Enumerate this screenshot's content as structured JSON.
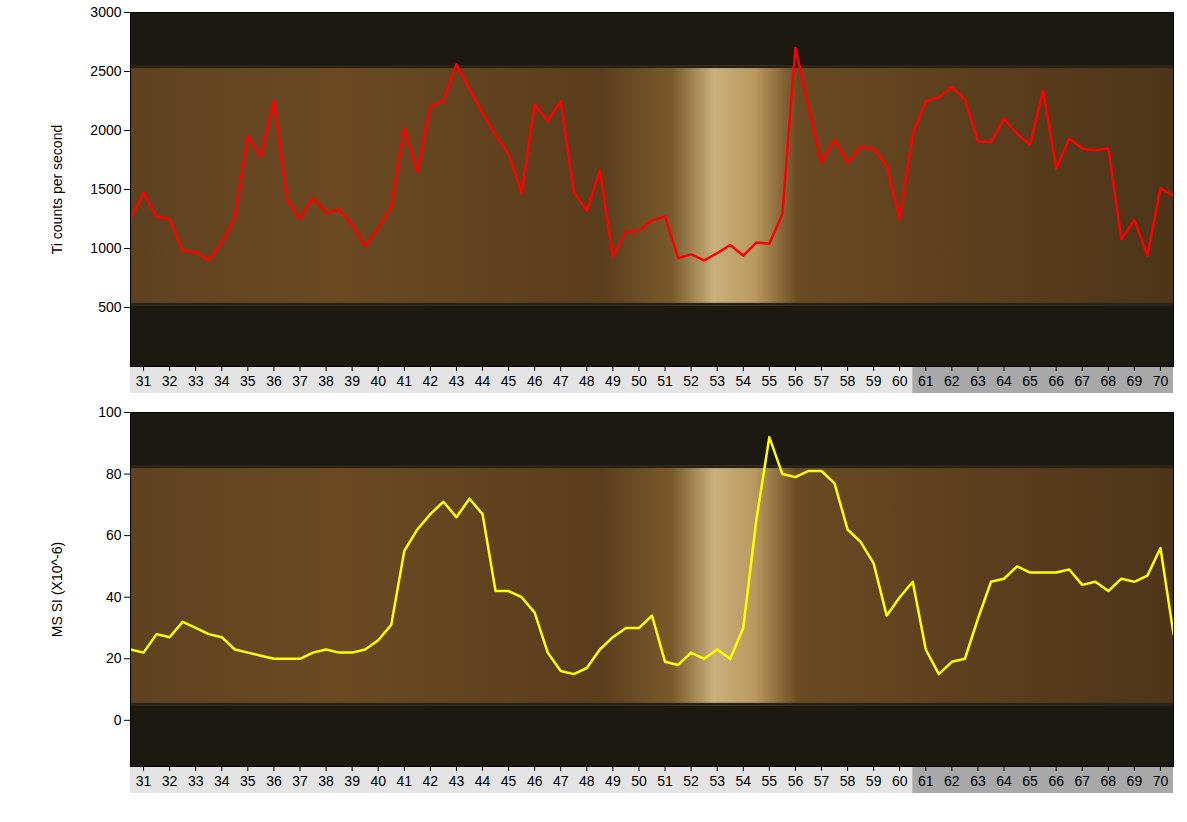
{
  "chart_data": [
    {
      "type": "line",
      "y_label": "Ti counts per second",
      "color": "#ff0000",
      "x": [
        30.5,
        31,
        31.5,
        32,
        32.5,
        33,
        33.5,
        34,
        34.5,
        35,
        35.5,
        36,
        36.5,
        37,
        37.5,
        38,
        38.5,
        39,
        39.5,
        40,
        40.5,
        41,
        41.5,
        42,
        42.5,
        43,
        43.5,
        44,
        44.5,
        45,
        45.5,
        46,
        46.5,
        47,
        47.5,
        48,
        48.5,
        49,
        49.5,
        50,
        50.5,
        51,
        51.5,
        52,
        52.5,
        53,
        53.5,
        54,
        54.5,
        55,
        55.5,
        56,
        56.5,
        57,
        57.5,
        58,
        58.5,
        59,
        59.5,
        60,
        60.5,
        61,
        61.5,
        62,
        62.5,
        63,
        63.5,
        64,
        64.5,
        65,
        65.5,
        66,
        66.5,
        67,
        67.5,
        68,
        68.5,
        69,
        69.5,
        70,
        70.5
      ],
      "values": [
        1250,
        1470,
        1270,
        1250,
        980,
        970,
        900,
        1050,
        1260,
        1950,
        1780,
        2250,
        1420,
        1250,
        1430,
        1300,
        1330,
        1200,
        1020,
        1170,
        1350,
        2020,
        1650,
        2200,
        2250,
        2560,
        2350,
        2150,
        1960,
        1800,
        1470,
        2220,
        2080,
        2250,
        1480,
        1320,
        1660,
        930,
        1140,
        1150,
        1240,
        1270,
        920,
        950,
        900,
        960,
        1030,
        940,
        1050,
        1040,
        1290,
        2700,
        2200,
        1730,
        1920,
        1730,
        1860,
        1850,
        1700,
        1250,
        1970,
        2250,
        2280,
        2370,
        2260,
        1910,
        1900,
        2100,
        1970,
        1880,
        2340,
        1680,
        1930,
        1850,
        1830,
        1850,
        1080,
        1240,
        940,
        1510,
        1450
      ],
      "xlim": [
        30.5,
        70.5
      ],
      "xticks": [
        31,
        32,
        33,
        34,
        35,
        36,
        37,
        38,
        39,
        40,
        41,
        42,
        43,
        44,
        45,
        46,
        47,
        48,
        49,
        50,
        51,
        52,
        53,
        54,
        55,
        56,
        57,
        58,
        59,
        60,
        61,
        62,
        63,
        64,
        65,
        66,
        67,
        68,
        69,
        70
      ],
      "ylim": [
        0,
        3000
      ],
      "yticks": [
        500,
        1000,
        1500,
        2000,
        2500,
        3000
      ]
    },
    {
      "type": "line",
      "y_label": "MS SI (X10^-6)",
      "color": "#ffff00",
      "x": [
        30.5,
        31,
        31.5,
        32,
        32.5,
        33,
        33.5,
        34,
        34.5,
        35,
        35.5,
        36,
        36.5,
        37,
        37.5,
        38,
        38.5,
        39,
        39.5,
        40,
        40.5,
        41,
        41.5,
        42,
        42.5,
        43,
        43.5,
        44,
        44.5,
        45,
        45.5,
        46,
        46.5,
        47,
        47.5,
        48,
        48.5,
        49,
        49.5,
        50,
        50.5,
        51,
        51.5,
        52,
        52.5,
        53,
        53.5,
        54,
        54.5,
        55,
        55.5,
        56,
        56.5,
        57,
        57.5,
        58,
        58.5,
        59,
        59.5,
        60,
        60.5,
        61,
        61.5,
        62,
        62.5,
        63,
        63.5,
        64,
        64.5,
        65,
        65.5,
        66,
        66.5,
        67,
        67.5,
        68,
        68.5,
        69,
        69.5,
        70,
        70.5
      ],
      "values": [
        23,
        22,
        28,
        27,
        32,
        30,
        28,
        27,
        23,
        22,
        21,
        20,
        20,
        20,
        22,
        23,
        22,
        22,
        23,
        26,
        31,
        55,
        62,
        67,
        71,
        66,
        72,
        67,
        42,
        42,
        40,
        35,
        22,
        16,
        15,
        17,
        23,
        27,
        30,
        30,
        34,
        19,
        18,
        22,
        20,
        23,
        20,
        30,
        65,
        92,
        80,
        79,
        81,
        81,
        77,
        62,
        58,
        51,
        34,
        40,
        45,
        23,
        15,
        19,
        20,
        33,
        45,
        46,
        50,
        48,
        48,
        48,
        49,
        44,
        45,
        42,
        46,
        45,
        47,
        56,
        28
      ],
      "xlim": [
        30.5,
        70.5
      ],
      "xticks": [
        31,
        32,
        33,
        34,
        35,
        36,
        37,
        38,
        39,
        40,
        41,
        42,
        43,
        44,
        45,
        46,
        47,
        48,
        49,
        50,
        51,
        52,
        53,
        54,
        55,
        56,
        57,
        58,
        59,
        60,
        61,
        62,
        63,
        64,
        65,
        66,
        67,
        68,
        69,
        70
      ],
      "ylim": [
        -15,
        100
      ],
      "yticks": [
        0,
        20,
        40,
        60,
        80,
        100
      ]
    }
  ]
}
